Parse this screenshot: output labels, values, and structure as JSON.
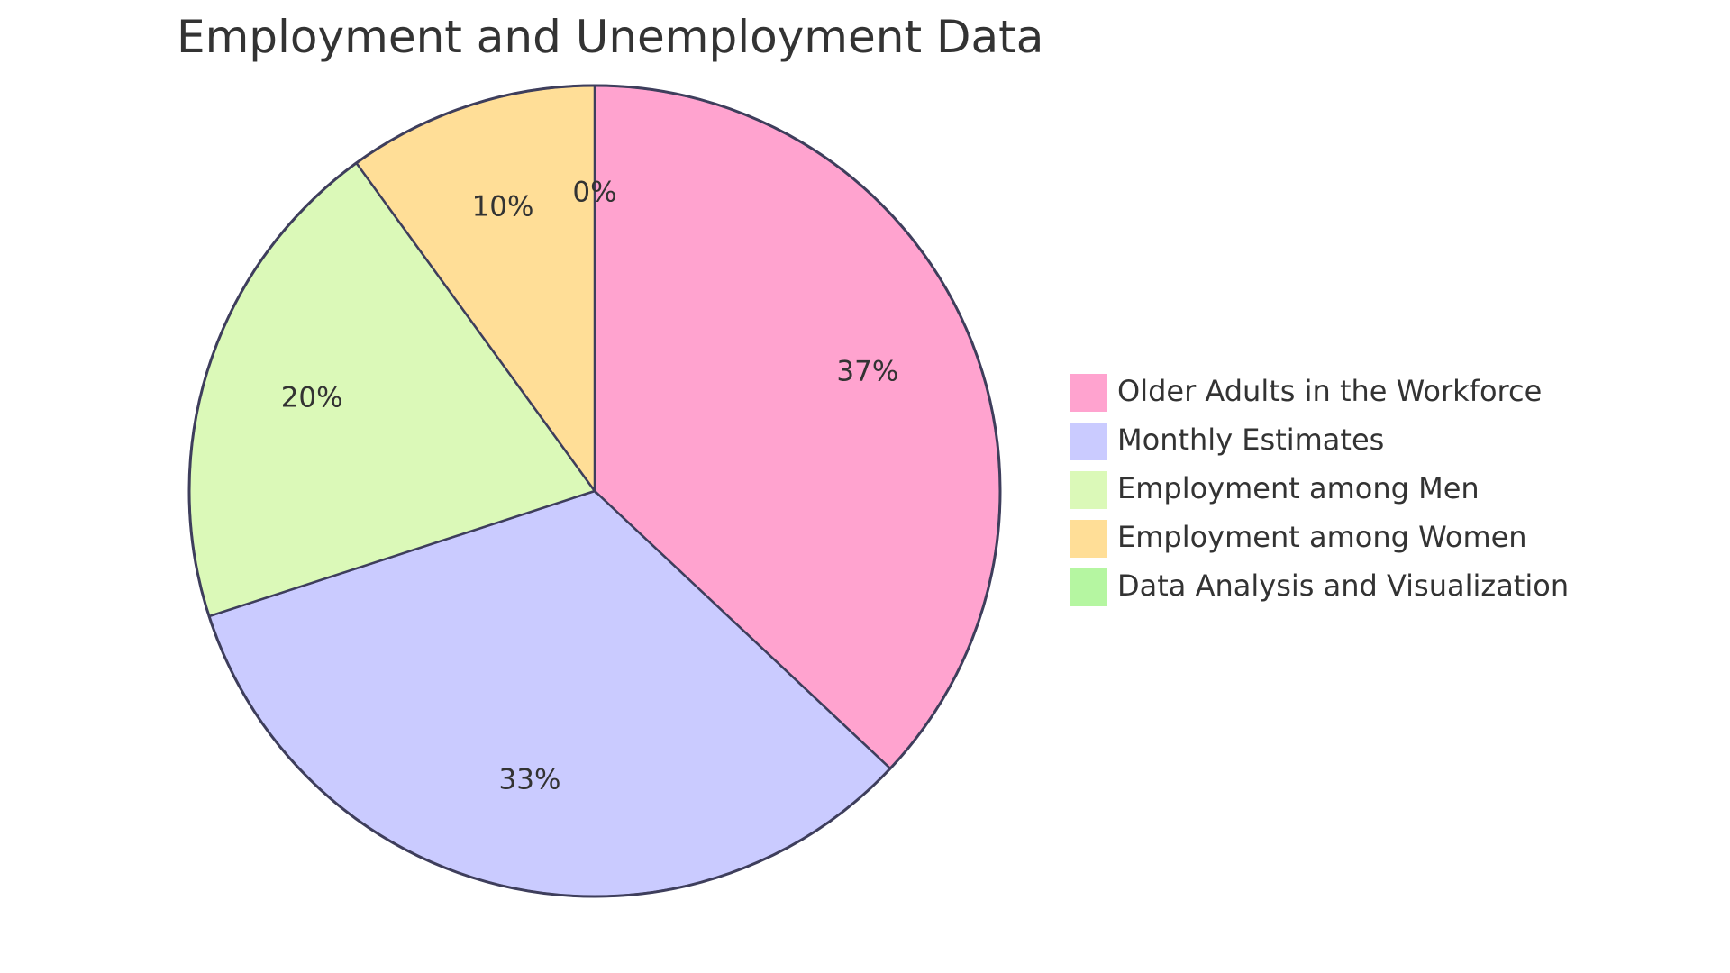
{
  "chart_data": {
    "type": "pie",
    "title": "Employment and Unemployment Data",
    "slices": [
      {
        "name": "Older Adults in the Workforce",
        "value": 37,
        "label": "37%",
        "color": "#FFA3CF"
      },
      {
        "name": "Monthly Estimates",
        "value": 33,
        "label": "33%",
        "color": "#CACBFF"
      },
      {
        "name": "Employment among Men",
        "value": 20,
        "label": "20%",
        "color": "#DBF9B8"
      },
      {
        "name": "Employment among Women",
        "value": 10,
        "label": "10%",
        "color": "#FFDE97"
      },
      {
        "name": "Data Analysis and Visualization",
        "value": 0,
        "label": "0%",
        "color": "#B5F6A1"
      }
    ],
    "legend_position": "right",
    "stroke_color": "#3E3E5C"
  }
}
